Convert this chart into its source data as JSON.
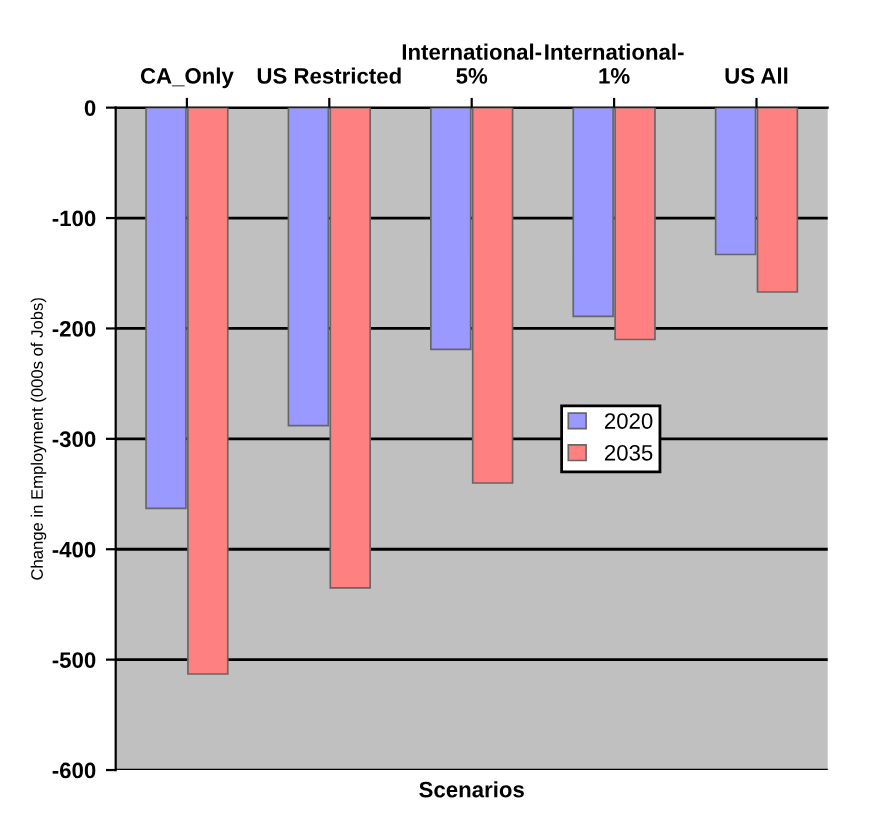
{
  "chart_data": {
    "type": "bar",
    "xlabel": "Scenarios",
    "ylabel": "Change in Employment (000s of Jobs)",
    "categories": [
      "CA_Only",
      "US Restricted",
      "International-\n5%",
      "International-\n1%",
      "US All"
    ],
    "series": [
      {
        "name": "2020",
        "color": "#9999ff",
        "values": [
          -363,
          -288,
          -219,
          -189,
          -133
        ]
      },
      {
        "name": "2035",
        "color": "#ff8080",
        "values": [
          -513,
          -435,
          -340,
          -210,
          -167
        ]
      }
    ],
    "ylim": [
      -600,
      0
    ],
    "yticks": [
      -600,
      -500,
      -400,
      -300,
      -200,
      -100,
      0
    ],
    "grid": "y",
    "legend": "right"
  }
}
